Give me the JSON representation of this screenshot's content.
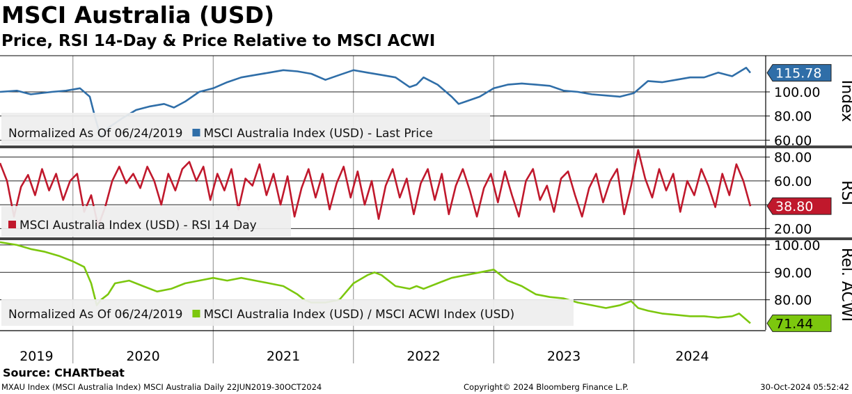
{
  "header": {
    "title": "MSCI Australia (USD)",
    "subtitle": "Price, RSI 14-Day & Price Relative to MSCI ACWI"
  },
  "footer": {
    "source": "Source: CHARTbeat",
    "left": "MXAU Index (MSCI Australia Index) MSCI Australia  Daily 22JUN2019-30OCT2024",
    "center": "Copyright© 2024 Bloomberg Finance L.P.",
    "right": "30-Oct-2024 05:52:42"
  },
  "colors": {
    "price": "#2f6ea8",
    "rsi": "#c0182c",
    "relative": "#7cc70e",
    "grid": "#000000",
    "panel_divider": "#444444",
    "legend_bg": "#eeeeee"
  },
  "chart_data": [
    {
      "type": "line",
      "panel": "price",
      "ylabel": "Index",
      "legend_title": "Normalized As Of 06/24/2019",
      "ylim": [
        55,
        130
      ],
      "yticks": [
        "60.00",
        "80.00",
        "100.00"
      ],
      "last_value_label": "115.78",
      "series": [
        {
          "name": "MSCI Australia Index (USD) - Last Price",
          "x": [
            2019.48,
            2019.6,
            2019.7,
            2019.85,
            2019.95,
            2020.05,
            2020.12,
            2020.16,
            2020.2,
            2020.22,
            2020.25,
            2020.3,
            2020.35,
            2020.45,
            2020.55,
            2020.65,
            2020.72,
            2020.8,
            2020.9,
            2021.0,
            2021.1,
            2021.2,
            2021.3,
            2021.4,
            2021.5,
            2021.6,
            2021.7,
            2021.8,
            2021.9,
            2022.0,
            2022.1,
            2022.2,
            2022.3,
            2022.4,
            2022.45,
            2022.5,
            2022.6,
            2022.7,
            2022.75,
            2022.8,
            2022.9,
            2023.0,
            2023.1,
            2023.2,
            2023.3,
            2023.4,
            2023.5,
            2023.6,
            2023.7,
            2023.8,
            2023.9,
            2024.0,
            2024.1,
            2024.2,
            2024.3,
            2024.4,
            2024.5,
            2024.6,
            2024.7,
            2024.8,
            2024.83
          ],
          "values": [
            100,
            101,
            98,
            100,
            101,
            103,
            96,
            78,
            62,
            66,
            70,
            74,
            78,
            85,
            88,
            90,
            87,
            92,
            100,
            103,
            108,
            112,
            114,
            116,
            118,
            117,
            115,
            110,
            114,
            118,
            116,
            114,
            112,
            104,
            106,
            112,
            106,
            96,
            90,
            92,
            96,
            103,
            106,
            107,
            106,
            105,
            101,
            100,
            98,
            97,
            96,
            99,
            109,
            108,
            110,
            112,
            112,
            116,
            113,
            120,
            115.78
          ]
        }
      ]
    },
    {
      "type": "line",
      "panel": "rsi",
      "ylabel": "RSI",
      "ylim": [
        12,
        88
      ],
      "yticks": [
        "20.00",
        "40.00",
        "60.00",
        "80.00"
      ],
      "last_value_label": "38.80",
      "series": [
        {
          "name": "MSCI Australia Index (USD) - RSI 14 Day",
          "x": [
            2019.48,
            2019.53,
            2019.58,
            2019.63,
            2019.68,
            2019.73,
            2019.78,
            2019.83,
            2019.88,
            2019.93,
            2019.98,
            2020.03,
            2020.08,
            2020.13,
            2020.18,
            2020.23,
            2020.28,
            2020.33,
            2020.38,
            2020.43,
            2020.48,
            2020.53,
            2020.58,
            2020.63,
            2020.68,
            2020.73,
            2020.78,
            2020.83,
            2020.88,
            2020.93,
            2020.98,
            2021.03,
            2021.08,
            2021.13,
            2021.18,
            2021.23,
            2021.28,
            2021.33,
            2021.38,
            2021.43,
            2021.48,
            2021.53,
            2021.58,
            2021.63,
            2021.68,
            2021.73,
            2021.78,
            2021.83,
            2021.88,
            2021.93,
            2021.98,
            2022.03,
            2022.08,
            2022.13,
            2022.18,
            2022.23,
            2022.28,
            2022.33,
            2022.38,
            2022.43,
            2022.48,
            2022.53,
            2022.58,
            2022.63,
            2022.68,
            2022.73,
            2022.78,
            2022.83,
            2022.88,
            2022.93,
            2022.98,
            2023.03,
            2023.08,
            2023.13,
            2023.18,
            2023.23,
            2023.28,
            2023.33,
            2023.38,
            2023.43,
            2023.48,
            2023.53,
            2023.58,
            2023.63,
            2023.68,
            2023.73,
            2023.78,
            2023.83,
            2023.88,
            2023.93,
            2023.98,
            2024.03,
            2024.08,
            2024.13,
            2024.18,
            2024.23,
            2024.28,
            2024.33,
            2024.38,
            2024.43,
            2024.48,
            2024.53,
            2024.58,
            2024.63,
            2024.68,
            2024.73,
            2024.78,
            2024.83
          ],
          "values": [
            75,
            60,
            30,
            55,
            65,
            48,
            70,
            52,
            66,
            44,
            60,
            66,
            34,
            48,
            22,
            38,
            60,
            72,
            58,
            66,
            54,
            72,
            60,
            40,
            66,
            52,
            70,
            76,
            60,
            72,
            44,
            66,
            52,
            70,
            36,
            62,
            56,
            74,
            48,
            66,
            40,
            64,
            30,
            54,
            70,
            46,
            66,
            36,
            58,
            72,
            46,
            68,
            40,
            60,
            28,
            56,
            70,
            46,
            62,
            32,
            58,
            70,
            44,
            66,
            32,
            56,
            70,
            52,
            30,
            54,
            66,
            42,
            68,
            48,
            30,
            60,
            70,
            44,
            56,
            34,
            62,
            68,
            48,
            30,
            54,
            66,
            42,
            60,
            70,
            32,
            56,
            86,
            62,
            46,
            70,
            52,
            66,
            34,
            60,
            48,
            70,
            56,
            38,
            66,
            48,
            74,
            60,
            38.8
          ]
        }
      ]
    },
    {
      "type": "line",
      "panel": "relative",
      "ylabel": "Rel. ACWI",
      "legend_title": "Normalized As Of 06/24/2019",
      "ylim": [
        69,
        102
      ],
      "yticks": [
        "80.00",
        "90.00",
        "100.00"
      ],
      "last_value_label": "71.44",
      "series": [
        {
          "name": "MSCI Australia Index (USD) / MSCI ACWI Index (USD)",
          "x": [
            2019.48,
            2019.6,
            2019.7,
            2019.8,
            2019.9,
            2020.0,
            2020.08,
            2020.13,
            2020.17,
            2020.2,
            2020.25,
            2020.3,
            2020.4,
            2020.5,
            2020.6,
            2020.7,
            2020.8,
            2020.9,
            2021.0,
            2021.1,
            2021.2,
            2021.3,
            2021.4,
            2021.5,
            2021.6,
            2021.65,
            2021.7,
            2021.8,
            2021.9,
            2022.0,
            2022.1,
            2022.15,
            2022.2,
            2022.3,
            2022.4,
            2022.45,
            2022.5,
            2022.6,
            2022.7,
            2022.8,
            2022.9,
            2023.0,
            2023.05,
            2023.1,
            2023.2,
            2023.3,
            2023.4,
            2023.5,
            2023.6,
            2023.7,
            2023.8,
            2023.9,
            2023.98,
            2024.03,
            2024.1,
            2024.2,
            2024.3,
            2024.4,
            2024.5,
            2024.6,
            2024.7,
            2024.75,
            2024.83
          ],
          "values": [
            101,
            100,
            98.5,
            97.5,
            96,
            94,
            92,
            86,
            78,
            80,
            82,
            86,
            87,
            85,
            83,
            84,
            86,
            87,
            88,
            87,
            88,
            87,
            86,
            85,
            82,
            80,
            79,
            79,
            80,
            86,
            89,
            90,
            89,
            85,
            84,
            85,
            84,
            86,
            88,
            89,
            90,
            91,
            89,
            87,
            85,
            82,
            81,
            80.5,
            79,
            78,
            77,
            78,
            79.5,
            77,
            76,
            75,
            74.5,
            74,
            74,
            73.5,
            74,
            75,
            71.44
          ]
        }
      ]
    }
  ],
  "xaxis": {
    "year_labels": [
      "2019",
      "2020",
      "2021",
      "2022",
      "2023",
      "2024"
    ],
    "year_boundaries": [
      2020,
      2021,
      2022,
      2023,
      2024
    ]
  }
}
